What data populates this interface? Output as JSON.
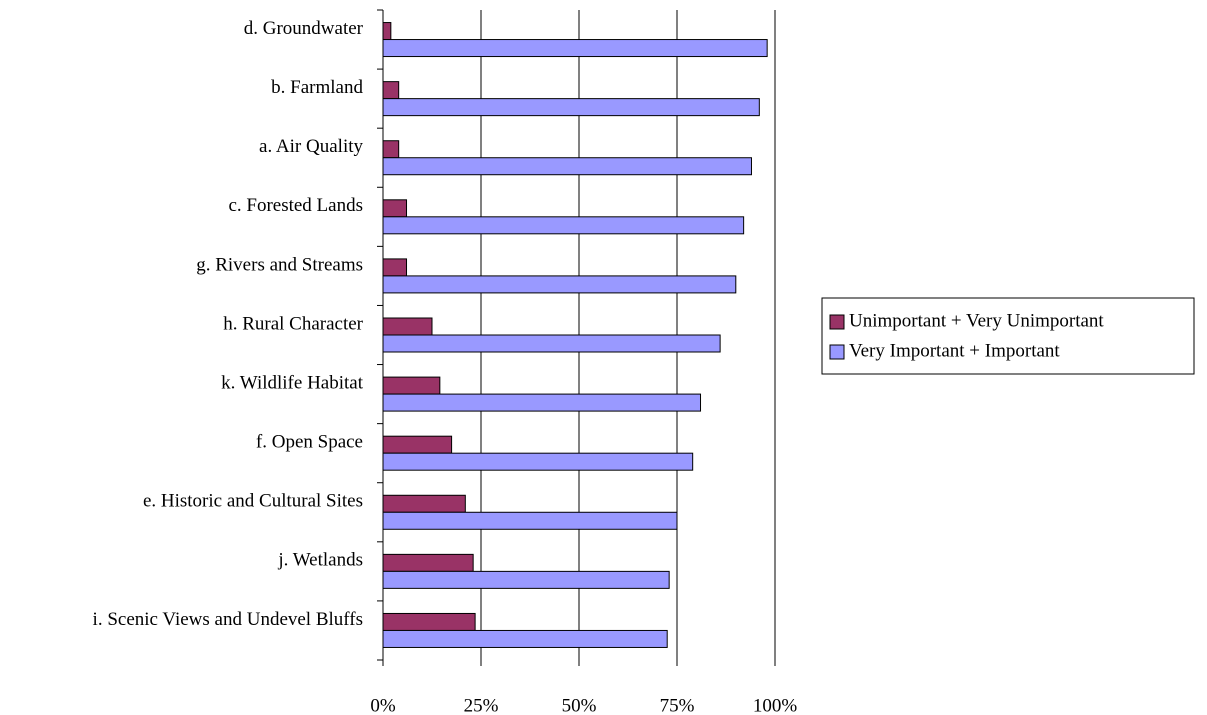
{
  "chart_data": {
    "type": "bar",
    "orientation": "horizontal",
    "categories": [
      "d. Groundwater",
      "b. Farmland",
      "a. Air Quality",
      "c. Forested Lands",
      "g. Rivers and Streams",
      "h. Rural Character",
      "k. Wildlife Habitat",
      "f.  Open Space",
      "e. Historic and Cultural Sites",
      "j. Wetlands",
      "i. Scenic Views and Undevel Bluffs"
    ],
    "series": [
      {
        "name": "Unimportant + Very Unimportant",
        "color": "#993366",
        "values": [
          2,
          4,
          4,
          6,
          6,
          12.5,
          14.5,
          17.5,
          21,
          23,
          23.5
        ]
      },
      {
        "name": "Very Important + Important",
        "color": "#9999ff",
        "values": [
          98,
          96,
          94,
          92,
          90,
          86,
          81,
          79,
          75,
          73,
          72.5
        ]
      }
    ],
    "xlim": [
      0,
      100
    ],
    "xticks": [
      {
        "value": 0,
        "label": "0%"
      },
      {
        "value": 25,
        "label": "25%"
      },
      {
        "value": 50,
        "label": "50%"
      },
      {
        "value": 75,
        "label": "75%"
      },
      {
        "value": 100,
        "label": "100%"
      }
    ],
    "grid": true,
    "legend": "right"
  }
}
